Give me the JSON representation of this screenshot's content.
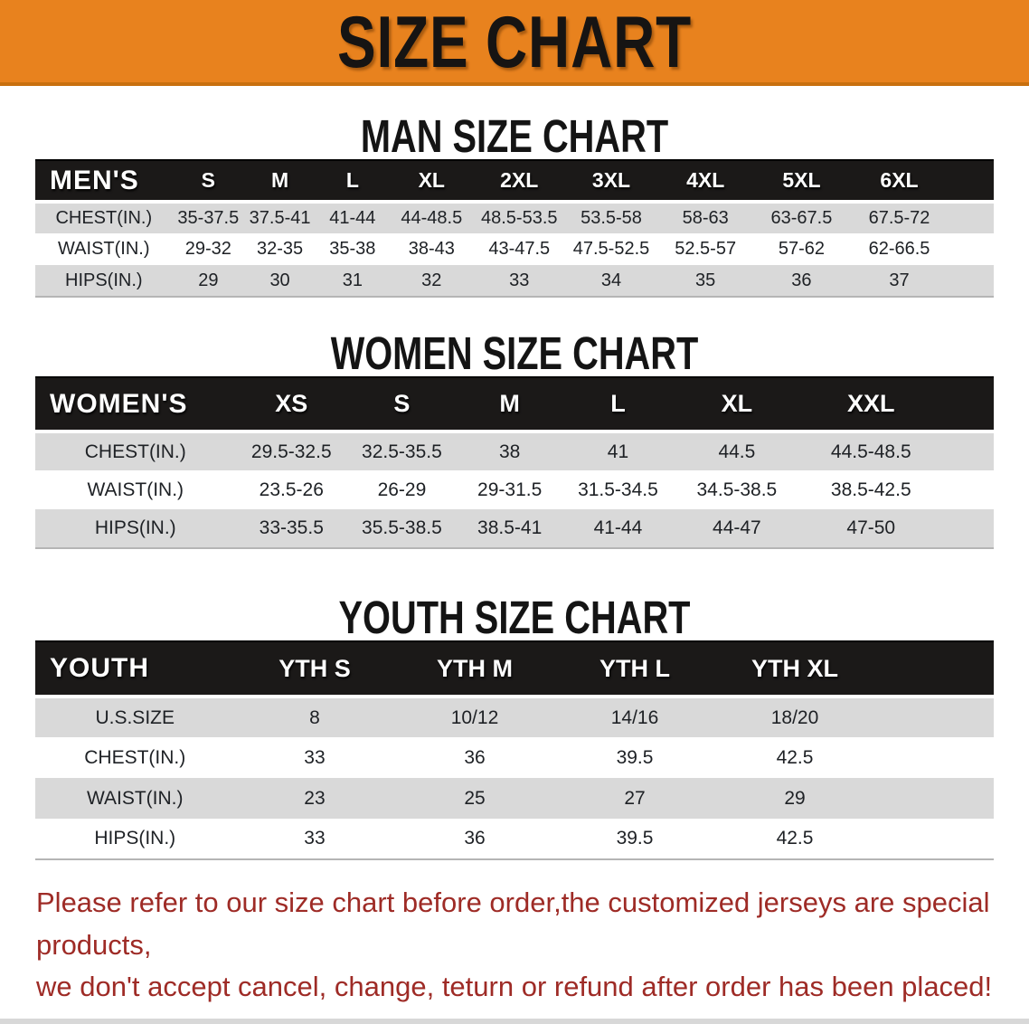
{
  "banner": {
    "title": "SIZE CHART",
    "bg_color": "#E8821E",
    "text_color": "#161413"
  },
  "sections": [
    {
      "id": "men",
      "heading": "MAN SIZE CHART",
      "table": {
        "label": "MEN'S",
        "columns": [
          "S",
          "M",
          "L",
          "XL",
          "2XL",
          "3XL",
          "4XL",
          "5XL",
          "6XL"
        ],
        "rows": [
          {
            "label": "CHEST(IN.)",
            "values": [
              "35-37.5",
              "37.5-41",
              "41-44",
              "44-48.5",
              "48.5-53.5",
              "53.5-58",
              "58-63",
              "63-67.5",
              "67.5-72"
            ]
          },
          {
            "label": "WAIST(IN.)",
            "values": [
              "29-32",
              "32-35",
              "35-38",
              "38-43",
              "43-47.5",
              "47.5-52.5",
              "52.5-57",
              "57-62",
              "62-66.5"
            ]
          },
          {
            "label": "HIPS(IN.)",
            "values": [
              "29",
              "30",
              "31",
              "32",
              "33",
              "34",
              "35",
              "36",
              "37"
            ]
          }
        ]
      }
    },
    {
      "id": "women",
      "heading": "WOMEN SIZE CHART",
      "table": {
        "label": "WOMEN'S",
        "columns": [
          "XS",
          "S",
          "M",
          "L",
          "XL",
          "XXL"
        ],
        "rows": [
          {
            "label": "CHEST(IN.)",
            "values": [
              "29.5-32.5",
              "32.5-35.5",
              "38",
              "41",
              "44.5",
              "44.5-48.5"
            ]
          },
          {
            "label": "WAIST(IN.)",
            "values": [
              "23.5-26",
              "26-29",
              "29-31.5",
              "31.5-34.5",
              "34.5-38.5",
              "38.5-42.5"
            ]
          },
          {
            "label": "HIPS(IN.)",
            "values": [
              "33-35.5",
              "35.5-38.5",
              "38.5-41",
              "41-44",
              "44-47",
              "47-50"
            ]
          }
        ]
      }
    },
    {
      "id": "youth",
      "heading": "YOUTH SIZE CHART",
      "table": {
        "label": "YOUTH",
        "columns": [
          "YTH S",
          "YTH M",
          "YTH L",
          "YTH XL"
        ],
        "rows": [
          {
            "label": "U.S.SIZE",
            "values": [
              "8",
              "10/12",
              "14/16",
              "18/20"
            ]
          },
          {
            "label": "CHEST(IN.)",
            "values": [
              "33",
              "36",
              "39.5",
              "42.5"
            ]
          },
          {
            "label": "WAIST(IN.)",
            "values": [
              "23",
              "25",
              "27",
              "29"
            ]
          },
          {
            "label": "HIPS(IN.)",
            "values": [
              "33",
              "36",
              "39.5",
              "42.5"
            ]
          }
        ]
      }
    }
  ],
  "footer": {
    "line1": "Please refer to our size chart before order,the customized jerseys are special products,",
    "line2": "we don't accept cancel, change, teturn or refund after order has been placed!",
    "text_color": "#9E2B26"
  }
}
